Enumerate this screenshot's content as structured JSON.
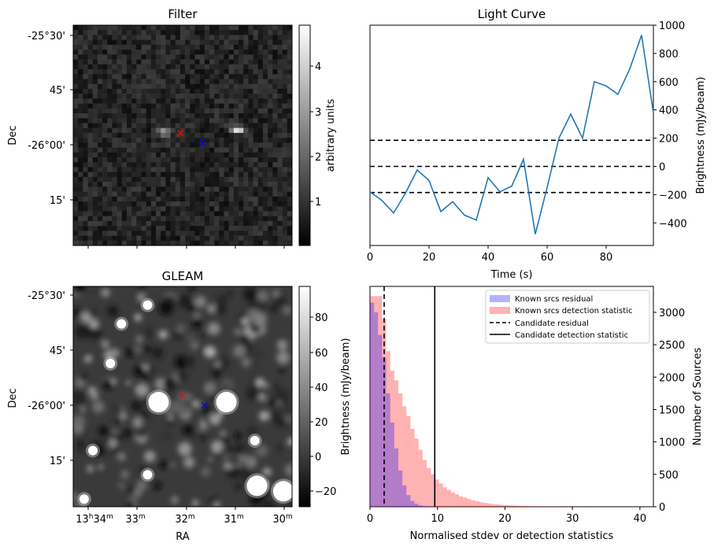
{
  "chart_data": [
    {
      "type": "heatmap",
      "title": "Filter",
      "ylabel": "Dec",
      "yticks": [
        "-25°30'",
        "45'",
        "-26°00'",
        "15'"
      ],
      "colorbar": {
        "label": "arbitrary units",
        "ticks": [
          "1",
          "2",
          "3",
          "4"
        ],
        "range": [
          0,
          4.8
        ]
      },
      "markers": [
        {
          "symbol": "x",
          "color": "#ff0000",
          "col": 0.49,
          "row": 0.49
        },
        {
          "symbol": "x",
          "color": "#0000ff",
          "col": 0.59,
          "row": 0.535
        }
      ],
      "sources": [
        {
          "col": 0.41,
          "row": 0.485,
          "brightness": 3.2
        },
        {
          "col": 0.75,
          "row": 0.475,
          "brightness": 4.3
        }
      ]
    },
    {
      "type": "line",
      "title": "Light Curve",
      "xlabel": "Time (s)",
      "ylabel": "Brightness (mJy/beam)",
      "xlim": [
        0,
        96
      ],
      "ylim": [
        -560,
        1000
      ],
      "xticks": [
        "0",
        "20",
        "40",
        "60",
        "80"
      ],
      "yticks": [
        "-400",
        "-200",
        "0",
        "200",
        "400",
        "600",
        "800",
        "1000"
      ],
      "color": "#1f77b4",
      "x": [
        0,
        4,
        8,
        12,
        16,
        20,
        24,
        28,
        32,
        36,
        40,
        44,
        48,
        52,
        56,
        60,
        64,
        68,
        72,
        76,
        80,
        84,
        88,
        92,
        96
      ],
      "y": [
        -180,
        -240,
        -330,
        -190,
        -25,
        -100,
        -320,
        -250,
        -345,
        -380,
        -80,
        -180,
        -140,
        50,
        -480,
        -150,
        200,
        370,
        200,
        600,
        570,
        510,
        690,
        930,
        380
      ],
      "hlines": [
        {
          "y": 185,
          "style": "dashed"
        },
        {
          "y": 0,
          "style": "dashed"
        },
        {
          "y": -185,
          "style": "dashed"
        }
      ]
    },
    {
      "type": "heatmap",
      "title": "GLEAM",
      "xlabel": "RA",
      "ylabel": "Dec",
      "xticks": [
        "13h34m",
        "33m",
        "32m",
        "31m",
        "30m"
      ],
      "yticks": [
        "-25°30'",
        "45'",
        "-26°00'",
        "15'"
      ],
      "colorbar": {
        "label": "",
        "ticks": [
          "−20",
          "0",
          "20",
          "40",
          "60",
          "80"
        ],
        "range": [
          -30,
          95
        ]
      },
      "markers": [
        {
          "symbol": "x",
          "color": "#ff0000",
          "col": 0.5,
          "row": 0.495
        },
        {
          "symbol": "x",
          "color": "#0000ff",
          "col": 0.6,
          "row": 0.54
        }
      ],
      "sources": [
        {
          "col": 0.39,
          "row": 0.525,
          "brightness": 95
        },
        {
          "col": 0.7,
          "row": 0.525,
          "brightness": 95
        },
        {
          "col": 0.84,
          "row": 0.905,
          "brightness": 90
        },
        {
          "col": 0.96,
          "row": 0.93,
          "brightness": 90
        },
        {
          "col": 0.05,
          "row": 0.965,
          "brightness": 80
        },
        {
          "col": 0.34,
          "row": 0.085,
          "brightness": 70
        },
        {
          "col": 0.22,
          "row": 0.17,
          "brightness": 70
        },
        {
          "col": 0.17,
          "row": 0.35,
          "brightness": 70
        },
        {
          "col": 0.09,
          "row": 0.745,
          "brightness": 70
        },
        {
          "col": 0.34,
          "row": 0.855,
          "brightness": 70
        },
        {
          "col": 0.83,
          "row": 0.7,
          "brightness": 70
        }
      ]
    },
    {
      "type": "bar",
      "xlabel": "Normalised stdev or detection statistics",
      "ylabel": "Brightness (mJy/beam)",
      "ylabel_right": "Number of Sources",
      "xlim": [
        0,
        42
      ],
      "ylim": [
        0,
        3400
      ],
      "xticks": [
        "0",
        "10",
        "20",
        "30",
        "40"
      ],
      "yticks": [
        "0",
        "500",
        "1000",
        "1500",
        "2000",
        "2500",
        "3000"
      ],
      "bin_width": 0.6,
      "series": [
        {
          "name": "Known srcs residual",
          "color": "#0000ff",
          "alpha": 0.3,
          "values": [
            3150,
            3000,
            2650,
            2300,
            1750,
            1300,
            900,
            560,
            330,
            180,
            90,
            45,
            20,
            10,
            5
          ]
        },
        {
          "name": "Known srcs detection statistic",
          "color": "#ff0000",
          "alpha": 0.3,
          "values": [
            3250,
            3250,
            3250,
            2900,
            2400,
            2100,
            1950,
            1750,
            1550,
            1400,
            1200,
            1050,
            880,
            720,
            600,
            500,
            420,
            360,
            300,
            260,
            220,
            190,
            160,
            140,
            120,
            100,
            85,
            70,
            60,
            50,
            42,
            36,
            30,
            25,
            21,
            18,
            15,
            12,
            10,
            9,
            8,
            7,
            6,
            5,
            5,
            4,
            4,
            3,
            3,
            3,
            2,
            2,
            2,
            2,
            2,
            2,
            2,
            1,
            1,
            1,
            1,
            1,
            1,
            1,
            1,
            1,
            1
          ]
        }
      ],
      "vlines": [
        {
          "name": "Candidate residual",
          "x": 2.1,
          "style": "dashed"
        },
        {
          "name": "Candidate detection statistic",
          "x": 9.6,
          "style": "solid"
        }
      ],
      "legend": "top-right"
    }
  ]
}
